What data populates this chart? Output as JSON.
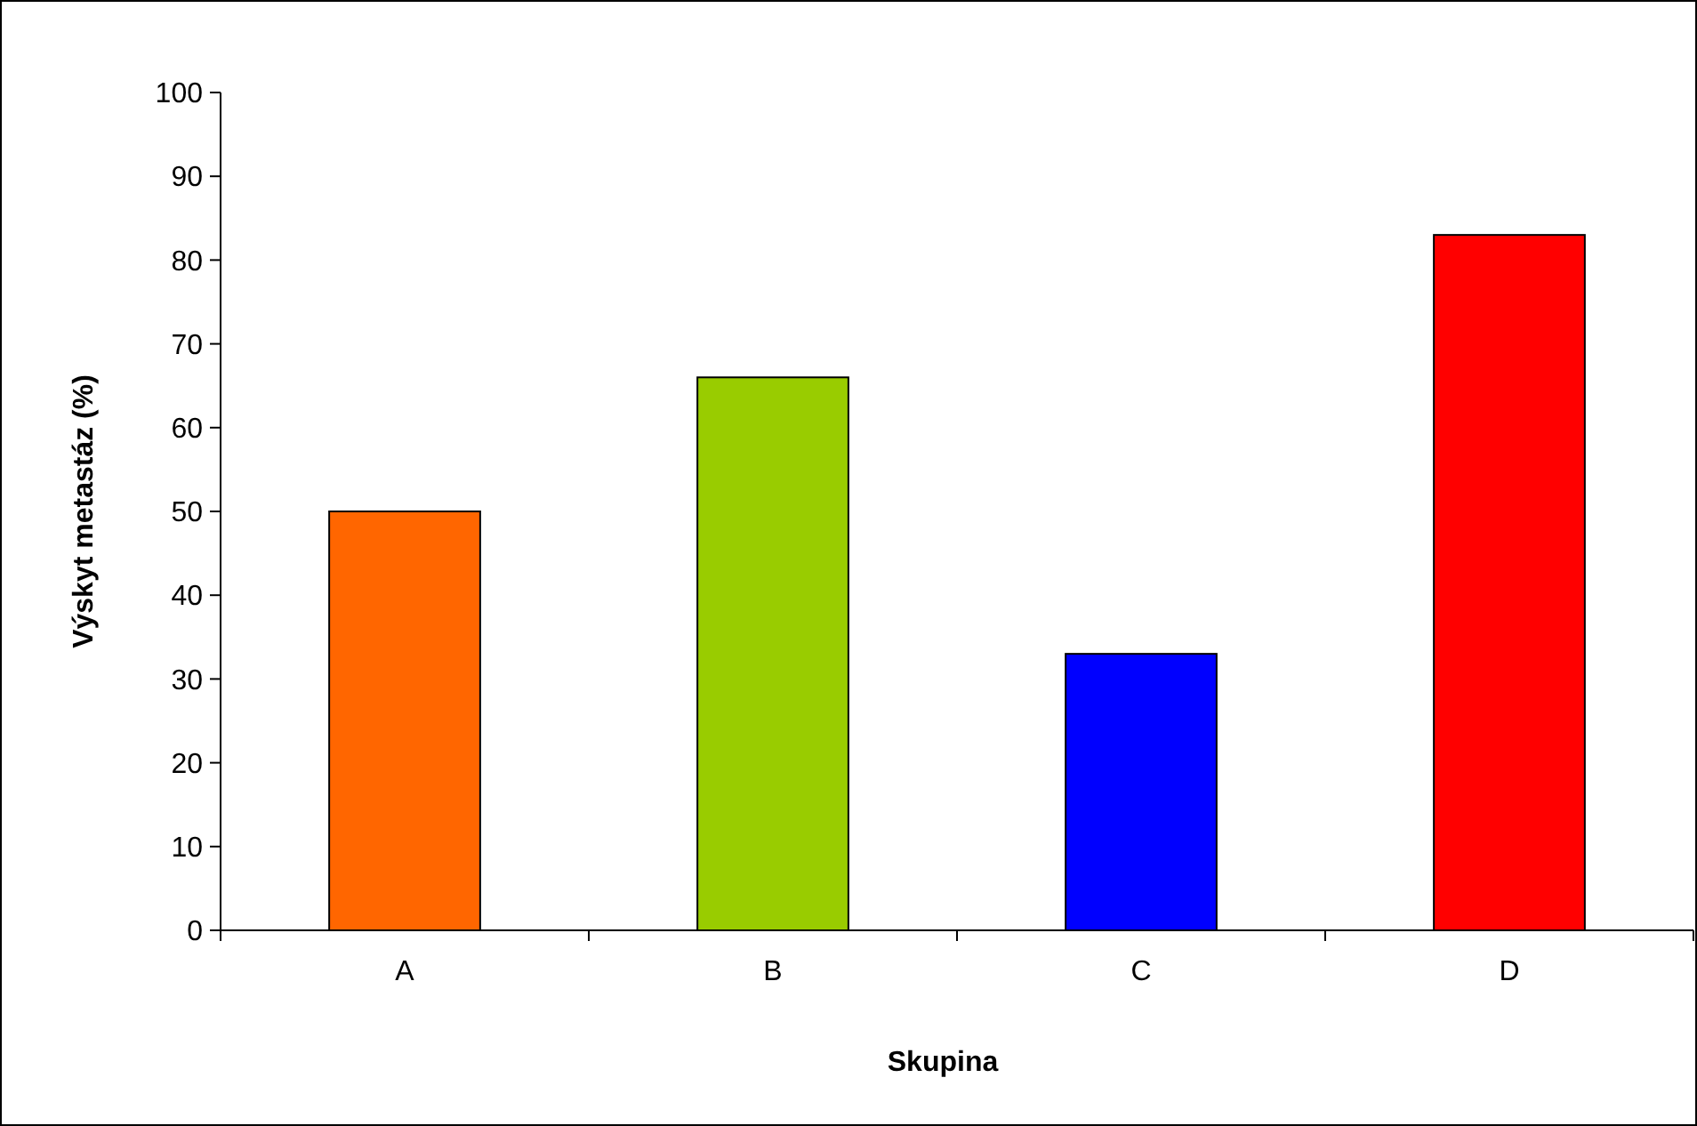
{
  "chart_data": {
    "type": "bar",
    "xlabel": "Skupina",
    "ylabel": "Výskyt metastáz (%)",
    "categories": [
      "A",
      "B",
      "C",
      "D"
    ],
    "values": [
      50,
      66,
      33,
      83
    ],
    "colors": [
      "#ff6600",
      "#99cc00",
      "#0000ff",
      "#ff0000"
    ],
    "ylim": [
      0,
      100
    ],
    "yticks": [
      0,
      10,
      20,
      30,
      40,
      50,
      60,
      70,
      80,
      90,
      100
    ],
    "grid": false
  }
}
